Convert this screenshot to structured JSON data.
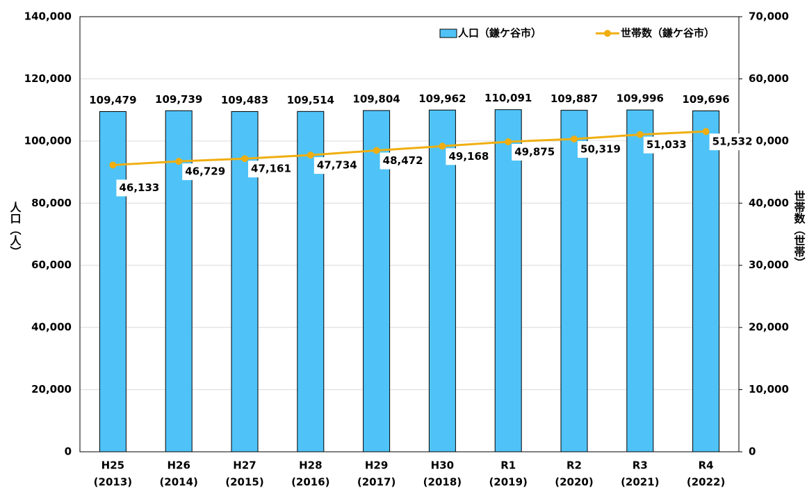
{
  "chart_data": {
    "type": "bar_line",
    "categories": [
      [
        "H25",
        "(2013)"
      ],
      [
        "H26",
        "(2014)"
      ],
      [
        "H27",
        "(2015)"
      ],
      [
        "H28",
        "(2016)"
      ],
      [
        "H29",
        "(2017)"
      ],
      [
        "H30",
        "(2018)"
      ],
      [
        "R1",
        "(2019)"
      ],
      [
        "R2",
        "(2020)"
      ],
      [
        "R3",
        "(2021)"
      ],
      [
        "R4",
        "(2022)"
      ]
    ],
    "series": [
      {
        "name": "人口（鎌ケ谷市）",
        "color": "#4fc3f7",
        "type": "bar",
        "values": [
          109479,
          109739,
          109483,
          109514,
          109804,
          109962,
          110091,
          109887,
          109996,
          109696
        ],
        "value_labels": [
          "109,479",
          "109,739",
          "109,483",
          "109,514",
          "109,804",
          "109,962",
          "110,091",
          "109,887",
          "109,996",
          "109,696"
        ]
      },
      {
        "name": "世帯数（鎌ケ谷市）",
        "color": "#f0ae10",
        "type": "line",
        "axis": "y2",
        "values": [
          46133,
          46729,
          47161,
          47734,
          48472,
          49168,
          49875,
          50319,
          51033,
          51532
        ],
        "value_labels": [
          "46,133",
          "46,729",
          "47,161",
          "47,734",
          "48,472",
          "49,168",
          "49,875",
          "50,319",
          "51,033",
          "51,532"
        ]
      }
    ],
    "ylabel": "人口（人）",
    "y2label": "世帯数（世帯）",
    "ylim": [
      0,
      140000
    ],
    "yticks": [
      0,
      {
        "value": 20000,
        "label": "20,000"
      },
      {
        "value": 40000,
        "label": "40,000"
      },
      {
        "value": 60000,
        "label": "60,000"
      },
      {
        "value": 80000,
        "label": "80,000"
      },
      {
        "value": 100000,
        "label": "100,000"
      },
      {
        "value": 120000,
        "label": "120,000"
      },
      {
        "value": 140000,
        "label": "140,000"
      }
    ],
    "y2lim": [
      0,
      70000
    ],
    "y2ticks": [
      0,
      {
        "value": 10000,
        "label": "10,000"
      },
      {
        "value": 20000,
        "label": "20,000"
      },
      {
        "value": 30000,
        "label": "30,000"
      },
      {
        "value": 40000,
        "label": "40,000"
      },
      {
        "value": 50000,
        "label": "50,000"
      },
      {
        "value": 60000,
        "label": "60,000"
      },
      {
        "value": 70000,
        "label": "70,000"
      }
    ],
    "grid": true,
    "legend": "top-right"
  }
}
